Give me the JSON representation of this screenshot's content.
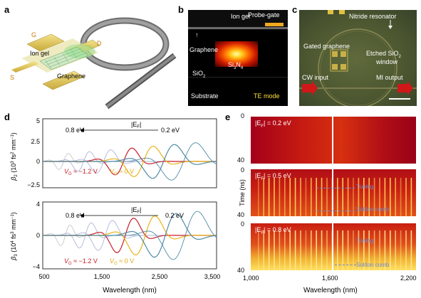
{
  "panels": {
    "a": {
      "letter": "a",
      "labels": {
        "g": "G",
        "d": "D",
        "s": "S",
        "ion_gel": "Ion gel",
        "graphene": "Graphene"
      }
    },
    "b": {
      "letter": "b",
      "labels": {
        "probe_gate": "Probe-gate",
        "ion_gel": "Ion gel",
        "graphene": "Graphene",
        "sin": "Si",
        "sin_sub": "3",
        "sin_n": "N",
        "sin_sub2": "4",
        "sio2": "SiO",
        "sio2_sub": "2",
        "substrate": "Substrate",
        "te_mode": "TE mode"
      }
    },
    "c": {
      "letter": "c",
      "labels": {
        "nitride": "Nitride resonator",
        "gated_graphene": "Gated graphene",
        "etched": "Etched SiO",
        "etched_sub": "2",
        "window": "window",
        "cw_input": "CW input",
        "mi_output": "MI output"
      }
    },
    "d": {
      "letter": "d",
      "xlabel": "Wavelength (nm)",
      "x_ticks": [
        "500",
        "1,500",
        "2,500",
        "3,500"
      ],
      "top": {
        "ylabel": "β",
        "ylabel_sub": "2",
        "ylabel_unit": " (10",
        "ylabel_exp": "3",
        "ylabel_unit2": " fs",
        "ylabel_exp2": "2",
        "ylabel_unit3": " mm",
        "ylabel_exp3": "−1",
        "ylabel_end": ")",
        "y_ticks": [
          "5",
          "2.5",
          "0",
          "−2.5"
        ],
        "ef_label": "|E",
        "ef_sub": "F",
        "ef_end": "|",
        "left_val": "0.8 eV",
        "right_val": "0.2 eV",
        "vg1_label": "V",
        "vg1_sub": "G",
        "vg1_val": " ≈ −1.2 V",
        "vg2_label": "V",
        "vg2_sub": "G",
        "vg2_val": " ≈ 0 V"
      },
      "bottom": {
        "ylabel": "β",
        "ylabel_sub": "3",
        "ylabel_unit": " (10",
        "ylabel_exp": "4",
        "ylabel_unit2": " fs",
        "ylabel_exp2": "3",
        "ylabel_unit3": " mm",
        "ylabel_exp3": "−1",
        "ylabel_end": ")",
        "y_ticks": [
          "4",
          "0",
          "−4"
        ],
        "ef_label": "|E",
        "ef_sub": "F",
        "ef_end": "|",
        "left_val": "0.8 eV",
        "right_val": "0.2 eV",
        "vg1_label": "V",
        "vg1_sub": "G",
        "vg1_val": " ≈ −1.2 V",
        "vg2_label": "V",
        "vg2_sub": "G",
        "vg2_val": " ≈ 0 V"
      }
    },
    "e": {
      "letter": "e",
      "ylabel": "Time (ns)",
      "xlabel": "Wavelength (nm)",
      "x_ticks": [
        "1,000",
        "1,600",
        "2,200"
      ],
      "sub_panels": [
        {
          "ef": "|E",
          "ef_sub": "F",
          "ef_val": "| = 0.2 eV",
          "t0": "0",
          "t1": "40"
        },
        {
          "ef": "|E",
          "ef_sub": "F",
          "ef_val": "| = 0.5 eV",
          "t0": "0",
          "t1": "40",
          "tuning": "Tuning",
          "soliton": "Soliton comb"
        },
        {
          "ef": "|E",
          "ef_sub": "F",
          "ef_val": "| = 0.8 eV",
          "t0": "0",
          "t1": "40",
          "tuning": "Tuning",
          "soliton": "Soliton comb"
        }
      ]
    }
  },
  "chart_data": [
    {
      "type": "line",
      "panel": "d-top",
      "ylabel": "β2 (10^3 fs^2 mm^-1)",
      "xlabel": "Wavelength (nm)",
      "xlim": [
        500,
        3500
      ],
      "ylim": [
        -2.5,
        5
      ],
      "colors": [
        "#c8c8c8",
        "#aeb6d8",
        "#c81e2a",
        "#e8b41a",
        "#4f8aa6"
      ],
      "series_count": 7
    },
    {
      "type": "line",
      "panel": "d-bottom",
      "ylabel": "β3 (10^4 fs^3 mm^-1)",
      "xlabel": "Wavelength (nm)",
      "xlim": [
        500,
        3500
      ],
      "ylim": [
        -4,
        4
      ],
      "colors": [
        "#c8c8c8",
        "#aeb6d8",
        "#c81e2a",
        "#e8b41a",
        "#4f8aa6"
      ],
      "series_count": 7
    },
    {
      "type": "heatmap",
      "panel": "e",
      "xlabel": "Wavelength (nm)",
      "ylabel": "Time (ns)",
      "xlim": [
        1000,
        2200
      ],
      "ylim": [
        0,
        40
      ]
    }
  ]
}
